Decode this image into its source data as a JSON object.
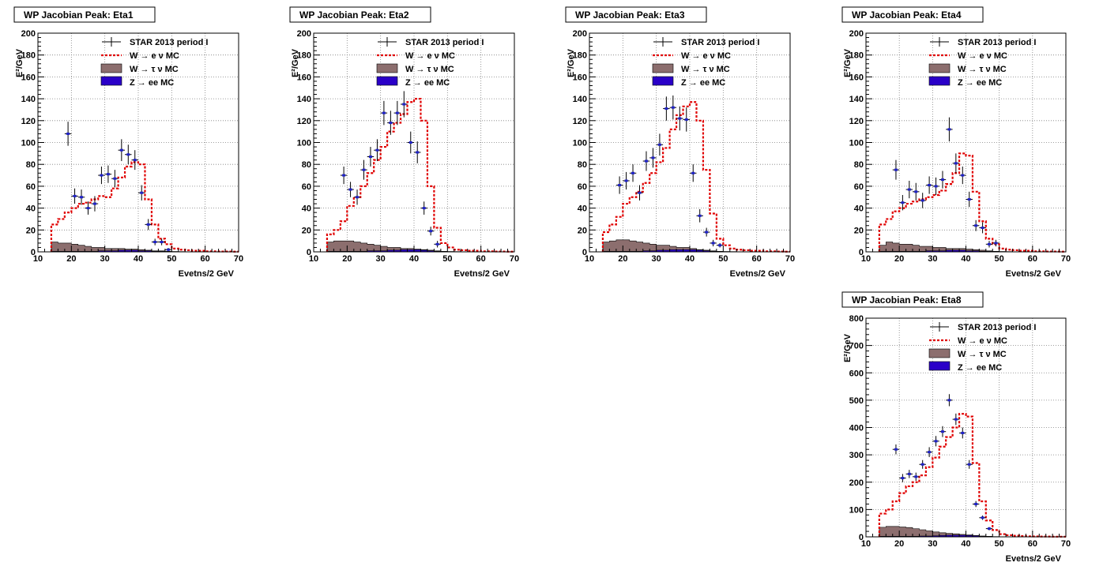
{
  "legend": {
    "data": "STAR 2013 period I",
    "wenu": "W  → e  ν MC",
    "wtaunu": "W  → τ  ν MC",
    "zee": "Z  → ee MC"
  },
  "colors": {
    "data": "#000000",
    "marker": "#1f22c8",
    "wenu": "#e00000",
    "wtaunu": "#8c6e6e",
    "zee": "#2a00c8",
    "grid": "#7f7f7f"
  },
  "footer": "",
  "chart_data": [
    {
      "id": "eta1",
      "type": "histogram",
      "title": "WP Jacobian Peak: Eta1",
      "xlabel": "Evetns/2 GeV",
      "ylabel": "E²/GeV",
      "xlim": [
        10,
        70
      ],
      "ylim": [
        0,
        200
      ],
      "xticks": [
        10,
        20,
        30,
        40,
        50,
        60,
        70
      ],
      "yticks": [
        0,
        20,
        40,
        60,
        80,
        100,
        120,
        140,
        160,
        180,
        200
      ],
      "grid": true,
      "legend_position": "top-right",
      "bin_edges": [
        14,
        16,
        18,
        20,
        22,
        24,
        26,
        28,
        30,
        32,
        34,
        36,
        38,
        40,
        42,
        44,
        46,
        48,
        50,
        52,
        54,
        56,
        58,
        60,
        62,
        64,
        66,
        68,
        70
      ],
      "wenu_mc": [
        25,
        30,
        36,
        40,
        44,
        45,
        48,
        51,
        50,
        58,
        68,
        78,
        82,
        80,
        48,
        25,
        12,
        7,
        3,
        2,
        1.5,
        1,
        1,
        0.5,
        0.5,
        0.3,
        0.3,
        0.2
      ],
      "wtaunu_mc": [
        9,
        8,
        8,
        7,
        6,
        5,
        4,
        4,
        3,
        3,
        3,
        2.5,
        2.5,
        2,
        1.5,
        1,
        1,
        0.5,
        0.3,
        0.2,
        0.1,
        0.1,
        0.1,
        0,
        0,
        0,
        0,
        0
      ],
      "zee_mc": [
        0.5,
        0.5,
        0.5,
        0.5,
        0.5,
        0.5,
        0.5,
        1,
        1,
        1,
        1.5,
        1.5,
        1.5,
        1,
        1,
        0.5,
        0.5,
        0.3,
        0.2,
        0.1,
        0,
        0,
        0,
        0,
        0,
        0,
        0,
        0
      ],
      "data_points": [
        {
          "x": 19,
          "y": 108,
          "err": 11
        },
        {
          "x": 21,
          "y": 51,
          "err": 7
        },
        {
          "x": 23,
          "y": 50,
          "err": 7
        },
        {
          "x": 25,
          "y": 40,
          "err": 6
        },
        {
          "x": 27,
          "y": 44,
          "err": 7
        },
        {
          "x": 29,
          "y": 70,
          "err": 8
        },
        {
          "x": 31,
          "y": 71,
          "err": 8
        },
        {
          "x": 33,
          "y": 67,
          "err": 8
        },
        {
          "x": 35,
          "y": 93,
          "err": 10
        },
        {
          "x": 37,
          "y": 89,
          "err": 9
        },
        {
          "x": 39,
          "y": 84,
          "err": 9
        },
        {
          "x": 41,
          "y": 54,
          "err": 7
        },
        {
          "x": 43,
          "y": 25,
          "err": 5
        },
        {
          "x": 45,
          "y": 9,
          "err": 3
        },
        {
          "x": 47,
          "y": 9,
          "err": 3
        },
        {
          "x": 49,
          "y": 2,
          "err": 1.5
        }
      ]
    },
    {
      "id": "eta2",
      "type": "histogram",
      "title": "WP Jacobian Peak: Eta2",
      "xlabel": "Evetns/2 GeV",
      "ylabel": "E²/GeV",
      "xlim": [
        10,
        70
      ],
      "ylim": [
        0,
        200
      ],
      "xticks": [
        10,
        20,
        30,
        40,
        50,
        60,
        70
      ],
      "yticks": [
        0,
        20,
        40,
        60,
        80,
        100,
        120,
        140,
        160,
        180,
        200
      ],
      "grid": true,
      "legend_position": "top-right",
      "bin_edges": [
        14,
        16,
        18,
        20,
        22,
        24,
        26,
        28,
        30,
        32,
        34,
        36,
        38,
        40,
        42,
        44,
        46,
        48,
        50,
        52,
        54,
        56,
        58,
        60,
        62,
        64,
        66,
        68,
        70
      ],
      "wenu_mc": [
        16,
        20,
        28,
        42,
        50,
        60,
        72,
        84,
        96,
        110,
        118,
        126,
        137,
        140,
        120,
        60,
        22,
        8,
        4,
        2,
        1.5,
        1,
        1,
        0.5,
        0.5,
        0.3,
        0.3,
        0.2
      ],
      "wtaunu_mc": [
        9,
        10,
        10,
        10,
        9,
        8,
        7,
        6,
        5,
        4,
        4,
        3,
        3,
        2.5,
        2,
        1.5,
        1,
        0.5,
        0.3,
        0.2,
        0.1,
        0.1,
        0.1,
        0,
        0,
        0,
        0,
        0
      ],
      "zee_mc": [
        0.5,
        0.5,
        0.5,
        0.5,
        0.5,
        0.5,
        1,
        1,
        1,
        1.5,
        1.5,
        2,
        2,
        2,
        1.5,
        1,
        0.5,
        0.3,
        0.2,
        0.1,
        0,
        0,
        0,
        0,
        0,
        0,
        0,
        0
      ],
      "data_points": [
        {
          "x": 19,
          "y": 70,
          "err": 8
        },
        {
          "x": 21,
          "y": 57,
          "err": 7
        },
        {
          "x": 23,
          "y": 50,
          "err": 7
        },
        {
          "x": 25,
          "y": 75,
          "err": 9
        },
        {
          "x": 27,
          "y": 87,
          "err": 9
        },
        {
          "x": 29,
          "y": 93,
          "err": 10
        },
        {
          "x": 31,
          "y": 127,
          "err": 11
        },
        {
          "x": 33,
          "y": 118,
          "err": 11
        },
        {
          "x": 35,
          "y": 127,
          "err": 11
        },
        {
          "x": 37,
          "y": 135,
          "err": 12
        },
        {
          "x": 39,
          "y": 100,
          "err": 10
        },
        {
          "x": 41,
          "y": 91,
          "err": 10
        },
        {
          "x": 43,
          "y": 40,
          "err": 6
        },
        {
          "x": 45,
          "y": 19,
          "err": 4
        },
        {
          "x": 47,
          "y": 7,
          "err": 3
        }
      ]
    },
    {
      "id": "eta3",
      "type": "histogram",
      "title": "WP Jacobian Peak: Eta3",
      "xlabel": "Evetns/2 GeV",
      "ylabel": "E²/GeV",
      "xlim": [
        10,
        70
      ],
      "ylim": [
        0,
        200
      ],
      "xticks": [
        10,
        20,
        30,
        40,
        50,
        60,
        70
      ],
      "yticks": [
        0,
        20,
        40,
        60,
        80,
        100,
        120,
        140,
        160,
        180,
        200
      ],
      "grid": true,
      "legend_position": "top-right",
      "bin_edges": [
        14,
        16,
        18,
        20,
        22,
        24,
        26,
        28,
        30,
        32,
        34,
        36,
        38,
        40,
        42,
        44,
        46,
        48,
        50,
        52,
        54,
        56,
        58,
        60,
        62,
        64,
        66,
        68,
        70
      ],
      "wenu_mc": [
        18,
        25,
        32,
        44,
        50,
        55,
        63,
        72,
        82,
        95,
        112,
        125,
        133,
        137,
        120,
        75,
        35,
        12,
        6,
        3,
        2,
        1.5,
        1,
        1,
        0.5,
        0.5,
        0.3,
        0.2
      ],
      "wtaunu_mc": [
        9,
        10,
        11,
        11,
        10,
        9,
        8,
        7,
        6,
        6,
        5,
        4,
        4,
        3,
        2,
        1.5,
        1,
        0.5,
        0.3,
        0.2,
        0.1,
        0.1,
        0.1,
        0,
        0,
        0,
        0,
        0
      ],
      "zee_mc": [
        0.5,
        0.5,
        0.5,
        0.5,
        0.5,
        0.5,
        1,
        1,
        1.5,
        1.5,
        2,
        2,
        2,
        2,
        1.5,
        1,
        0.5,
        0.3,
        0.2,
        0.1,
        0,
        0,
        0,
        0,
        0,
        0,
        0,
        0
      ],
      "data_points": [
        {
          "x": 19,
          "y": 61,
          "err": 8
        },
        {
          "x": 21,
          "y": 65,
          "err": 8
        },
        {
          "x": 23,
          "y": 72,
          "err": 8
        },
        {
          "x": 25,
          "y": 54,
          "err": 7
        },
        {
          "x": 27,
          "y": 83,
          "err": 9
        },
        {
          "x": 29,
          "y": 86,
          "err": 9
        },
        {
          "x": 31,
          "y": 98,
          "err": 10
        },
        {
          "x": 33,
          "y": 131,
          "err": 11
        },
        {
          "x": 35,
          "y": 132,
          "err": 11
        },
        {
          "x": 37,
          "y": 122,
          "err": 11
        },
        {
          "x": 39,
          "y": 121,
          "err": 11
        },
        {
          "x": 41,
          "y": 72,
          "err": 8
        },
        {
          "x": 43,
          "y": 33,
          "err": 6
        },
        {
          "x": 45,
          "y": 18,
          "err": 4
        },
        {
          "x": 47,
          "y": 8,
          "err": 3
        },
        {
          "x": 49,
          "y": 6,
          "err": 2
        }
      ]
    },
    {
      "id": "eta4",
      "type": "histogram",
      "title": "WP Jacobian Peak: Eta4",
      "xlabel": "Evetns/2 GeV",
      "ylabel": "E²/GeV",
      "xlim": [
        10,
        70
      ],
      "ylim": [
        0,
        200
      ],
      "xticks": [
        10,
        20,
        30,
        40,
        50,
        60,
        70
      ],
      "yticks": [
        0,
        20,
        40,
        60,
        80,
        100,
        120,
        140,
        160,
        180,
        200
      ],
      "grid": true,
      "legend_position": "top-right",
      "bin_edges": [
        14,
        16,
        18,
        20,
        22,
        24,
        26,
        28,
        30,
        32,
        34,
        36,
        38,
        40,
        42,
        44,
        46,
        48,
        50,
        52,
        54,
        56,
        58,
        60,
        62,
        64,
        66,
        68,
        70
      ],
      "wenu_mc": [
        25,
        30,
        37,
        40,
        44,
        46,
        48,
        50,
        52,
        56,
        62,
        72,
        90,
        88,
        55,
        28,
        12,
        7,
        3,
        2,
        1.5,
        1,
        1,
        0.5,
        0.5,
        0.3,
        0.3,
        0.2
      ],
      "wtaunu_mc": [
        6,
        9,
        8,
        7,
        7,
        6,
        5,
        5,
        4,
        4,
        3,
        3,
        3,
        2.5,
        2,
        1.5,
        1,
        0.5,
        0.3,
        0.2,
        0.1,
        0.1,
        0.1,
        0,
        0,
        0,
        0,
        0
      ],
      "zee_mc": [
        0.5,
        0.5,
        0.5,
        0.5,
        0.5,
        0.5,
        0.5,
        1,
        1,
        1,
        1.5,
        1.5,
        1.5,
        1,
        1,
        0.5,
        0.5,
        0.3,
        0.2,
        0.1,
        0,
        0,
        0,
        0,
        0,
        0,
        0,
        0
      ],
      "data_points": [
        {
          "x": 19,
          "y": 75,
          "err": 9
        },
        {
          "x": 21,
          "y": 45,
          "err": 7
        },
        {
          "x": 23,
          "y": 57,
          "err": 8
        },
        {
          "x": 25,
          "y": 55,
          "err": 8
        },
        {
          "x": 27,
          "y": 47,
          "err": 7
        },
        {
          "x": 29,
          "y": 61,
          "err": 8
        },
        {
          "x": 31,
          "y": 60,
          "err": 8
        },
        {
          "x": 33,
          "y": 66,
          "err": 8
        },
        {
          "x": 35,
          "y": 112,
          "err": 11
        },
        {
          "x": 37,
          "y": 81,
          "err": 9
        },
        {
          "x": 39,
          "y": 70,
          "err": 8
        },
        {
          "x": 41,
          "y": 48,
          "err": 7
        },
        {
          "x": 43,
          "y": 24,
          "err": 5
        },
        {
          "x": 45,
          "y": 22,
          "err": 5
        },
        {
          "x": 47,
          "y": 7,
          "err": 3
        },
        {
          "x": 49,
          "y": 8,
          "err": 3
        }
      ]
    },
    {
      "id": "eta8",
      "type": "histogram",
      "title": "WP Jacobian Peak: Eta8",
      "xlabel": "Evetns/2 GeV",
      "ylabel": "E²/GeV",
      "xlim": [
        10,
        70
      ],
      "ylim": [
        0,
        800
      ],
      "xticks": [
        10,
        20,
        30,
        40,
        50,
        60,
        70
      ],
      "yticks": [
        0,
        100,
        200,
        300,
        400,
        500,
        600,
        700,
        800
      ],
      "grid": true,
      "legend_position": "top-right",
      "bin_edges": [
        14,
        16,
        18,
        20,
        22,
        24,
        26,
        28,
        30,
        32,
        34,
        36,
        38,
        40,
        42,
        44,
        46,
        48,
        50,
        52,
        54,
        56,
        58,
        60,
        62,
        64,
        66,
        68,
        70
      ],
      "wenu_mc": [
        85,
        100,
        130,
        160,
        185,
        200,
        225,
        255,
        290,
        330,
        365,
        400,
        450,
        440,
        270,
        130,
        60,
        25,
        10,
        6,
        4,
        3,
        2,
        1.5,
        1,
        1,
        0.5,
        0.5
      ],
      "wtaunu_mc": [
        35,
        38,
        38,
        36,
        34,
        30,
        26,
        22,
        18,
        15,
        13,
        11,
        9,
        7,
        5,
        3,
        2,
        1,
        0.5,
        0.3,
        0.2,
        0.1,
        0.1,
        0,
        0,
        0,
        0,
        0
      ],
      "zee_mc": [
        2,
        2,
        2,
        2,
        2,
        2,
        3,
        3,
        4,
        5,
        6,
        6,
        6,
        5,
        4,
        2,
        1,
        0.5,
        0.3,
        0.2,
        0,
        0,
        0,
        0,
        0,
        0,
        0,
        0
      ],
      "data_points": [
        {
          "x": 19,
          "y": 320,
          "err": 18
        },
        {
          "x": 21,
          "y": 215,
          "err": 15
        },
        {
          "x": 23,
          "y": 230,
          "err": 15
        },
        {
          "x": 25,
          "y": 220,
          "err": 15
        },
        {
          "x": 27,
          "y": 265,
          "err": 16
        },
        {
          "x": 29,
          "y": 310,
          "err": 18
        },
        {
          "x": 31,
          "y": 350,
          "err": 19
        },
        {
          "x": 33,
          "y": 385,
          "err": 20
        },
        {
          "x": 35,
          "y": 500,
          "err": 22
        },
        {
          "x": 37,
          "y": 430,
          "err": 21
        },
        {
          "x": 39,
          "y": 380,
          "err": 20
        },
        {
          "x": 41,
          "y": 265,
          "err": 16
        },
        {
          "x": 43,
          "y": 120,
          "err": 11
        },
        {
          "x": 45,
          "y": 70,
          "err": 8
        },
        {
          "x": 47,
          "y": 30,
          "err": 6
        }
      ]
    }
  ]
}
